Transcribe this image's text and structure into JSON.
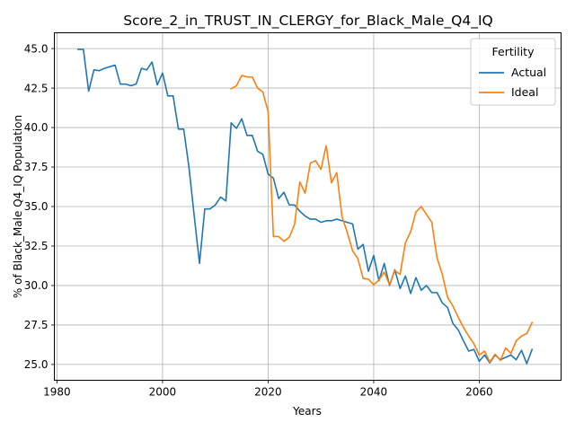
{
  "chart_data": {
    "type": "line",
    "title": "Score_2_in_TRUST_IN_CLERGY_for_Black_Male_Q4_IQ",
    "xlabel": "Years",
    "ylabel": "% of Black_Male Q4_IQ Population",
    "xlim": [
      1979.5,
      2075.5
    ],
    "ylim": [
      24.0,
      46.0
    ],
    "xticks": [
      1980,
      2000,
      2020,
      2040,
      2060
    ],
    "xtick_labels": [
      "1980",
      "2000",
      "2020",
      "2040",
      "2060"
    ],
    "yticks": [
      25.0,
      27.5,
      30.0,
      32.5,
      35.0,
      37.5,
      40.0,
      42.5,
      45.0
    ],
    "ytick_labels": [
      "25.0",
      "27.5",
      "30.0",
      "32.5",
      "35.0",
      "37.5",
      "40.0",
      "42.5",
      "45.0"
    ],
    "grid": true,
    "legend": {
      "title": "Fertility",
      "position": "top-right"
    },
    "series": [
      {
        "name": "Actual",
        "color": "#1f77b4",
        "x": [
          1984,
          1985,
          1986,
          1987,
          1988,
          1989,
          1990,
          1991,
          1992,
          1993,
          1994,
          1995,
          1996,
          1997,
          1998,
          1999,
          2000,
          2001,
          2002,
          2003,
          2004,
          2005,
          2006,
          2007,
          2008,
          2009,
          2010,
          2011,
          2012,
          2013,
          2014,
          2015,
          2016,
          2017,
          2018,
          2019,
          2020,
          2021,
          2022,
          2023,
          2024,
          2025,
          2026,
          2027,
          2028,
          2029,
          2030,
          2031,
          2032,
          2033,
          2034,
          2035,
          2036,
          2037,
          2038,
          2039,
          2040,
          2041,
          2042,
          2043,
          2044,
          2045,
          2046,
          2047,
          2048,
          2049,
          2050,
          2051,
          2052,
          2053,
          2054,
          2055,
          2056,
          2057,
          2058,
          2059,
          2060,
          2061,
          2062,
          2063,
          2064,
          2065,
          2066,
          2067,
          2068,
          2069,
          2070
        ],
        "y": [
          44.95,
          44.95,
          42.3,
          43.65,
          43.6,
          43.75,
          43.85,
          43.95,
          42.75,
          42.75,
          42.65,
          42.75,
          43.75,
          43.65,
          44.15,
          42.7,
          43.45,
          42.0,
          42.0,
          39.9,
          39.9,
          37.5,
          34.4,
          31.4,
          34.85,
          34.85,
          35.1,
          35.6,
          35.35,
          40.3,
          39.95,
          40.55,
          39.5,
          39.5,
          38.5,
          38.3,
          37.05,
          36.8,
          35.5,
          35.9,
          35.1,
          35.1,
          34.7,
          34.4,
          34.2,
          34.2,
          34.0,
          34.1,
          34.1,
          34.2,
          34.1,
          34.0,
          33.9,
          32.3,
          32.6,
          30.9,
          31.9,
          30.3,
          31.4,
          30.0,
          31.0,
          29.8,
          30.6,
          29.5,
          30.5,
          29.7,
          30.0,
          29.55,
          29.55,
          28.9,
          28.6,
          27.6,
          27.2,
          26.5,
          25.85,
          25.95,
          25.2,
          25.6,
          25.1,
          25.6,
          25.3,
          25.45,
          25.6,
          25.3,
          25.9,
          25.05,
          25.95
        ]
      },
      {
        "name": "Ideal",
        "color": "#ff7f0e",
        "x": [
          2013,
          2014,
          2015,
          2016,
          2017,
          2018,
          2019,
          2020,
          2021,
          2022,
          2023,
          2024,
          2025,
          2026,
          2027,
          2028,
          2029,
          2030,
          2031,
          2032,
          2033,
          2034,
          2035,
          2036,
          2037,
          2038,
          2039,
          2040,
          2041,
          2042,
          2043,
          2044,
          2045,
          2046,
          2047,
          2048,
          2049,
          2050,
          2051,
          2052,
          2053,
          2054,
          2055,
          2056,
          2057,
          2058,
          2059,
          2060,
          2061,
          2062,
          2063,
          2064,
          2065,
          2066,
          2067,
          2068,
          2069,
          2070
        ],
        "y": [
          42.45,
          42.65,
          43.3,
          43.2,
          43.2,
          42.5,
          42.25,
          41.0,
          33.1,
          33.1,
          32.8,
          33.05,
          33.85,
          36.55,
          35.85,
          37.75,
          37.9,
          37.35,
          38.85,
          36.5,
          37.15,
          34.35,
          33.35,
          32.2,
          31.7,
          30.45,
          30.4,
          30.05,
          30.35,
          30.85,
          30.05,
          30.95,
          30.7,
          32.7,
          33.4,
          34.65,
          35.0,
          34.5,
          34.0,
          31.75,
          30.7,
          29.25,
          28.7,
          28.0,
          27.35,
          26.8,
          26.3,
          25.6,
          25.85,
          25.15,
          25.65,
          25.25,
          26.05,
          25.7,
          26.5,
          26.8,
          26.95,
          27.65
        ]
      }
    ]
  }
}
